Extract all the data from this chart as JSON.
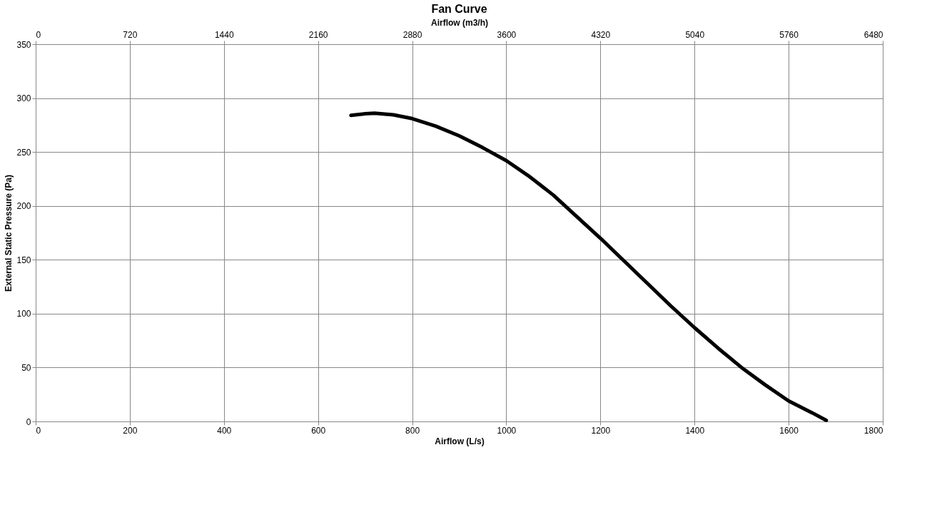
{
  "chart_data": {
    "type": "line",
    "title": "Fan Curve",
    "xlabel": "Airflow (L/s)",
    "x2label": "Airflow (m3/h)",
    "ylabel": "External Static Pressure (Pa)",
    "series": [
      {
        "color": "#000000",
        "x": [
          670,
          700,
          720,
          760,
          800,
          850,
          900,
          950,
          1000,
          1050,
          1100,
          1150,
          1200,
          1250,
          1300,
          1350,
          1400,
          1450,
          1500,
          1550,
          1600,
          1650,
          1680
        ],
        "values": [
          284,
          285.5,
          286,
          284.5,
          281,
          274,
          265,
          254,
          242,
          227,
          210,
          190,
          170,
          149,
          128,
          107,
          87,
          68,
          50,
          34,
          19,
          8,
          1
        ]
      }
    ],
    "xlim": [
      0,
      1800
    ],
    "xticks": [
      0,
      200,
      400,
      600,
      800,
      1000,
      1200,
      1400,
      1600,
      1800
    ],
    "x2lim": [
      0,
      6480
    ],
    "x2ticks": [
      0,
      720,
      1440,
      2160,
      2880,
      3600,
      4320,
      5040,
      5760,
      6480
    ],
    "ylim": [
      0,
      350
    ],
    "yticks": [
      0,
      50,
      100,
      150,
      200,
      250,
      300,
      350
    ],
    "grid": true,
    "marker": "none",
    "line_style": "solid"
  }
}
